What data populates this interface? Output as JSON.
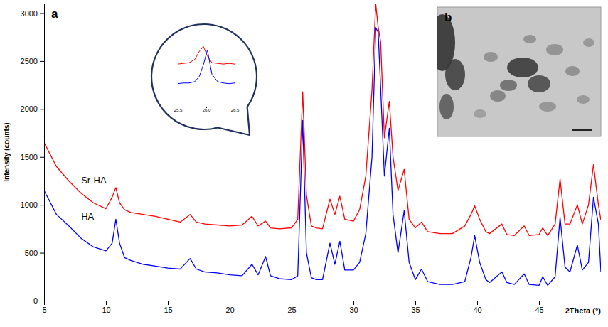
{
  "chart_data": [
    {
      "type": "line",
      "title": "a",
      "x_label": "2Theta (°)",
      "y_label": "Intensity (counts)",
      "x": [
        5,
        6,
        7,
        8,
        9,
        10,
        10.5,
        10.8,
        11.1,
        11.5,
        12,
        13,
        14,
        15,
        16,
        16.8,
        17.3,
        18,
        19,
        20,
        21,
        21.8,
        22.3,
        22.9,
        23.3,
        24,
        25,
        25.5,
        25.9,
        26.2,
        26.6,
        27,
        27.5,
        28.1,
        28.5,
        28.9,
        29.3,
        30,
        30.5,
        31,
        31.5,
        31.8,
        32,
        32.2,
        32.5,
        32.9,
        33.2,
        33.6,
        34.1,
        34.5,
        35,
        35.5,
        36,
        37,
        38,
        39,
        39.5,
        39.8,
        40.2,
        40.7,
        41,
        42,
        42.4,
        43,
        43.8,
        44.2,
        45,
        45.3,
        45.7,
        46.3,
        46.7,
        47.1,
        47.5,
        48.1,
        48.5,
        49,
        49.4,
        49.8,
        50
      ],
      "series": [
        {
          "name": "Sr-HA",
          "color": "#ff0000",
          "values": [
            1650,
            1400,
            1250,
            1120,
            1020,
            960,
            1080,
            1180,
            1020,
            950,
            920,
            900,
            880,
            850,
            820,
            900,
            820,
            800,
            790,
            780,
            790,
            880,
            780,
            830,
            760,
            750,
            760,
            850,
            2180,
            1100,
            780,
            760,
            750,
            1060,
            900,
            1090,
            850,
            830,
            950,
            1300,
            2200,
            3100,
            2850,
            2700,
            1700,
            2080,
            1500,
            1150,
            1370,
            850,
            760,
            820,
            720,
            700,
            700,
            780,
            900,
            990,
            850,
            720,
            700,
            800,
            690,
            680,
            780,
            680,
            690,
            760,
            680,
            800,
            1270,
            800,
            800,
            1000,
            800,
            1000,
            1420,
            1000,
            840
          ]
        },
        {
          "name": "HA",
          "color": "#0000ff",
          "values": [
            1150,
            900,
            780,
            650,
            560,
            520,
            600,
            850,
            600,
            450,
            420,
            380,
            360,
            340,
            330,
            440,
            330,
            300,
            290,
            270,
            260,
            380,
            270,
            460,
            260,
            230,
            220,
            260,
            1880,
            500,
            240,
            220,
            220,
            600,
            380,
            620,
            320,
            320,
            400,
            700,
            1500,
            2850,
            2800,
            2220,
            1300,
            1800,
            900,
            500,
            940,
            400,
            220,
            330,
            200,
            170,
            170,
            200,
            450,
            680,
            400,
            220,
            190,
            300,
            190,
            170,
            280,
            170,
            160,
            250,
            160,
            250,
            870,
            350,
            300,
            580,
            320,
            400,
            1080,
            800,
            300
          ]
        }
      ],
      "xlim": [
        5,
        50
      ],
      "ylim": [
        0,
        3100
      ],
      "xticks": [
        5,
        10,
        15,
        20,
        25,
        30,
        35,
        40,
        45
      ],
      "yticks": [
        0,
        500,
        1000,
        1500,
        2000,
        2500,
        3000
      ]
    },
    {
      "type": "line",
      "tick_labels": "x",
      "x": [
        25.5,
        25.6,
        25.7,
        25.8,
        25.88,
        25.95,
        26.02,
        26.1,
        26.2,
        26.3,
        26.4,
        26.5
      ],
      "series": [
        {
          "color": "#ff0000",
          "values": [
            63,
            64,
            65,
            70,
            82,
            89,
            75,
            65,
            64,
            63,
            64,
            63
          ]
        },
        {
          "color": "#0000ff",
          "values": [
            34,
            35,
            35,
            37,
            45,
            62,
            84,
            48,
            37,
            35,
            34,
            35
          ]
        }
      ],
      "xlim": [
        25.5,
        26.5
      ],
      "ylim": [
        0,
        100
      ],
      "xticks": [
        25.5,
        {
          "value": 26,
          "label": "26.0"
        },
        26.5
      ]
    }
  ],
  "image_panel": {
    "label": "b"
  }
}
